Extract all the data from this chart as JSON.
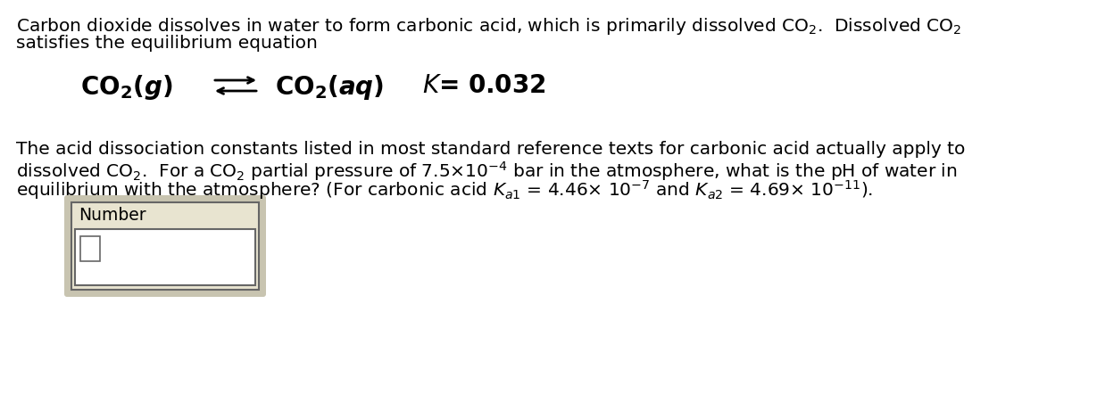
{
  "bg_color": "#ffffff",
  "text_color": "#000000",
  "figsize": [
    12.29,
    4.42
  ],
  "dpi": 100,
  "fs_body": 14.5,
  "fs_eq": 20,
  "number_box_label": "Number",
  "outer_box_color": "#c8c4b0",
  "label_bg_color": "#e8e4d0",
  "input_bg_color": "#ffffff",
  "box_border_color": "#666666"
}
